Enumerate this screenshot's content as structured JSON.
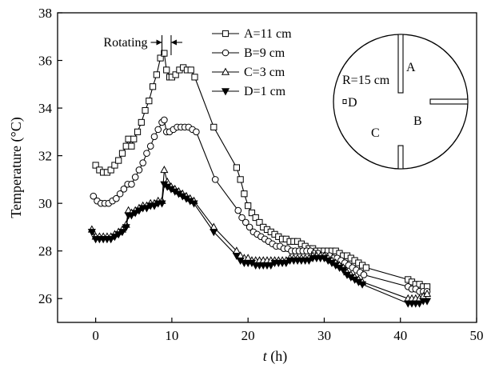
{
  "chart_data": {
    "type": "line",
    "xlabel_italic": "t",
    "xlabel_unit": " (h)",
    "ylabel": "Temperature (°C)",
    "xlim": [
      -5,
      50
    ],
    "ylim": [
      25,
      38
    ],
    "xticks": [
      0,
      10,
      20,
      30,
      40,
      50
    ],
    "yticks": [
      26,
      28,
      30,
      32,
      34,
      36,
      38
    ],
    "annotation": "Rotating",
    "rotating_interval": [
      8.7,
      9.9
    ],
    "inset": {
      "radius_label": "R=15 cm",
      "labels": [
        "A",
        "B",
        "C",
        "D"
      ]
    },
    "series": [
      {
        "name": "A=11 cm",
        "marker": "square",
        "points": [
          [
            0,
            31.6
          ],
          [
            0.5,
            31.4
          ],
          [
            1,
            31.3
          ],
          [
            1.5,
            31.3
          ],
          [
            2,
            31.4
          ],
          [
            2.5,
            31.6
          ],
          [
            3,
            31.8
          ],
          [
            3.5,
            32.1
          ],
          [
            4,
            32.4
          ],
          [
            4.3,
            32.7
          ],
          [
            4.7,
            32.4
          ],
          [
            5,
            32.7
          ],
          [
            5.5,
            33.0
          ],
          [
            6,
            33.4
          ],
          [
            6.5,
            33.9
          ],
          [
            7,
            34.3
          ],
          [
            7.5,
            34.9
          ],
          [
            8,
            35.4
          ],
          [
            8.5,
            36.1
          ],
          [
            9,
            36.3
          ],
          [
            9.3,
            35.6
          ],
          [
            9.7,
            35.3
          ],
          [
            10,
            35.3
          ],
          [
            10.5,
            35.4
          ],
          [
            11,
            35.6
          ],
          [
            11.5,
            35.7
          ],
          [
            12,
            35.6
          ],
          [
            12.5,
            35.6
          ],
          [
            13,
            35.3
          ],
          [
            15.5,
            33.2
          ],
          [
            18.5,
            31.5
          ],
          [
            19,
            31.0
          ],
          [
            19.5,
            30.4
          ],
          [
            20,
            29.9
          ],
          [
            20.5,
            29.6
          ],
          [
            21,
            29.4
          ],
          [
            21.5,
            29.2
          ],
          [
            22,
            29.0
          ],
          [
            22.5,
            28.9
          ],
          [
            23,
            28.8
          ],
          [
            23.5,
            28.7
          ],
          [
            24,
            28.6
          ],
          [
            24.5,
            28.5
          ],
          [
            25,
            28.5
          ],
          [
            25.5,
            28.4
          ],
          [
            26,
            28.4
          ],
          [
            26.5,
            28.4
          ],
          [
            27,
            28.3
          ],
          [
            27.5,
            28.2
          ],
          [
            28,
            28.1
          ],
          [
            28.5,
            28.1
          ],
          [
            29,
            28.0
          ],
          [
            29.5,
            28.0
          ],
          [
            30,
            28.0
          ],
          [
            30.5,
            28.0
          ],
          [
            31,
            28.0
          ],
          [
            31.5,
            28.0
          ],
          [
            32,
            27.9
          ],
          [
            32.5,
            27.8
          ],
          [
            33,
            27.8
          ],
          [
            33.5,
            27.7
          ],
          [
            34,
            27.6
          ],
          [
            34.5,
            27.5
          ],
          [
            35,
            27.4
          ],
          [
            35.5,
            27.3
          ],
          [
            41,
            26.8
          ],
          [
            41.5,
            26.7
          ],
          [
            42,
            26.6
          ],
          [
            42.5,
            26.6
          ],
          [
            43,
            26.5
          ],
          [
            43.5,
            26.5
          ]
        ]
      },
      {
        "name": "B=9 cm",
        "marker": "circle",
        "points": [
          [
            -0.3,
            30.3
          ],
          [
            0.2,
            30.1
          ],
          [
            0.7,
            30.0
          ],
          [
            1.2,
            30.0
          ],
          [
            1.7,
            30.0
          ],
          [
            2.2,
            30.1
          ],
          [
            2.7,
            30.2
          ],
          [
            3.2,
            30.4
          ],
          [
            3.7,
            30.6
          ],
          [
            4.2,
            30.8
          ],
          [
            4.7,
            30.8
          ],
          [
            5.2,
            31.1
          ],
          [
            5.7,
            31.4
          ],
          [
            6.2,
            31.7
          ],
          [
            6.7,
            32.1
          ],
          [
            7.2,
            32.4
          ],
          [
            7.7,
            32.8
          ],
          [
            8.2,
            33.1
          ],
          [
            8.7,
            33.4
          ],
          [
            9,
            33.5
          ],
          [
            9.3,
            33.0
          ],
          [
            9.7,
            33.0
          ],
          [
            10.2,
            33.1
          ],
          [
            10.7,
            33.2
          ],
          [
            11.2,
            33.2
          ],
          [
            11.7,
            33.2
          ],
          [
            12.2,
            33.2
          ],
          [
            12.7,
            33.1
          ],
          [
            13.2,
            33.0
          ],
          [
            15.7,
            31.0
          ],
          [
            18.7,
            29.7
          ],
          [
            19.2,
            29.4
          ],
          [
            19.7,
            29.2
          ],
          [
            20.2,
            29.0
          ],
          [
            20.7,
            28.8
          ],
          [
            21.2,
            28.7
          ],
          [
            21.7,
            28.6
          ],
          [
            22.2,
            28.5
          ],
          [
            22.7,
            28.4
          ],
          [
            23.2,
            28.3
          ],
          [
            23.7,
            28.2
          ],
          [
            24.2,
            28.2
          ],
          [
            24.7,
            28.1
          ],
          [
            25.2,
            28.1
          ],
          [
            25.7,
            28.0
          ],
          [
            26.2,
            28.0
          ],
          [
            26.7,
            28.0
          ],
          [
            27.2,
            28.0
          ],
          [
            27.7,
            28.0
          ],
          [
            28.2,
            28.0
          ],
          [
            28.7,
            27.9
          ],
          [
            29.2,
            27.9
          ],
          [
            29.7,
            27.8
          ],
          [
            30.2,
            27.8
          ],
          [
            30.7,
            27.8
          ],
          [
            31.2,
            27.7
          ],
          [
            31.7,
            27.7
          ],
          [
            32.2,
            27.6
          ],
          [
            32.7,
            27.5
          ],
          [
            33.2,
            27.4
          ],
          [
            33.7,
            27.3
          ],
          [
            34.2,
            27.2
          ],
          [
            34.7,
            27.1
          ],
          [
            35.2,
            27.0
          ],
          [
            41,
            26.5
          ],
          [
            41.5,
            26.4
          ],
          [
            42,
            26.4
          ],
          [
            42.5,
            26.3
          ],
          [
            43,
            26.3
          ],
          [
            43.5,
            26.3
          ]
        ]
      },
      {
        "name": "C=3 cm",
        "marker": "triangle-up",
        "points": [
          [
            -0.5,
            28.9
          ],
          [
            0,
            28.6
          ],
          [
            0.5,
            28.6
          ],
          [
            1,
            28.6
          ],
          [
            1.5,
            28.6
          ],
          [
            2,
            28.6
          ],
          [
            2.5,
            28.7
          ],
          [
            3,
            28.8
          ],
          [
            3.5,
            28.9
          ],
          [
            4,
            29.1
          ],
          [
            4.3,
            29.7
          ],
          [
            4.7,
            29.6
          ],
          [
            5.2,
            29.7
          ],
          [
            5.7,
            29.8
          ],
          [
            6.2,
            29.9
          ],
          [
            6.7,
            29.9
          ],
          [
            7.2,
            30.0
          ],
          [
            7.7,
            30.0
          ],
          [
            8.2,
            30.1
          ],
          [
            8.7,
            30.1
          ],
          [
            9,
            31.4
          ],
          [
            9.4,
            30.9
          ],
          [
            9.9,
            30.7
          ],
          [
            10.4,
            30.6
          ],
          [
            10.9,
            30.5
          ],
          [
            11.4,
            30.4
          ],
          [
            11.9,
            30.3
          ],
          [
            12.4,
            30.2
          ],
          [
            12.9,
            30.1
          ],
          [
            15.5,
            29.0
          ],
          [
            18.5,
            28.0
          ],
          [
            19,
            27.8
          ],
          [
            19.5,
            27.7
          ],
          [
            20,
            27.7
          ],
          [
            20.5,
            27.6
          ],
          [
            21,
            27.6
          ],
          [
            21.5,
            27.6
          ],
          [
            22,
            27.6
          ],
          [
            22.5,
            27.6
          ],
          [
            23,
            27.6
          ],
          [
            23.5,
            27.6
          ],
          [
            24,
            27.6
          ],
          [
            24.5,
            27.6
          ],
          [
            25,
            27.6
          ],
          [
            25.5,
            27.7
          ],
          [
            26,
            27.7
          ],
          [
            26.5,
            27.7
          ],
          [
            27,
            27.7
          ],
          [
            27.5,
            27.7
          ],
          [
            28,
            27.7
          ],
          [
            28.5,
            27.8
          ],
          [
            29,
            27.8
          ],
          [
            29.5,
            27.8
          ],
          [
            30,
            27.8
          ],
          [
            30.5,
            27.7
          ],
          [
            31,
            27.6
          ],
          [
            31.5,
            27.5
          ],
          [
            32,
            27.4
          ],
          [
            32.5,
            27.3
          ],
          [
            33,
            27.1
          ],
          [
            33.5,
            27.0
          ],
          [
            34,
            26.9
          ],
          [
            34.5,
            26.8
          ],
          [
            35,
            26.7
          ],
          [
            41,
            26.0
          ],
          [
            41.5,
            26.0
          ],
          [
            42,
            26.0
          ],
          [
            42.5,
            26.0
          ],
          [
            43,
            26.1
          ],
          [
            43.5,
            26.2
          ]
        ]
      },
      {
        "name": "D=1 cm",
        "marker": "triangle-down",
        "points": [
          [
            -0.5,
            28.8
          ],
          [
            0,
            28.5
          ],
          [
            0.5,
            28.5
          ],
          [
            1,
            28.5
          ],
          [
            1.5,
            28.5
          ],
          [
            2,
            28.5
          ],
          [
            2.5,
            28.6
          ],
          [
            3,
            28.7
          ],
          [
            3.5,
            28.8
          ],
          [
            4,
            29.0
          ],
          [
            4.3,
            29.5
          ],
          [
            4.7,
            29.5
          ],
          [
            5.2,
            29.6
          ],
          [
            5.7,
            29.7
          ],
          [
            6.2,
            29.8
          ],
          [
            6.7,
            29.8
          ],
          [
            7.2,
            29.9
          ],
          [
            7.7,
            29.9
          ],
          [
            8.2,
            30.0
          ],
          [
            8.7,
            30.0
          ],
          [
            9,
            30.8
          ],
          [
            9.4,
            30.7
          ],
          [
            9.9,
            30.6
          ],
          [
            10.4,
            30.5
          ],
          [
            10.9,
            30.4
          ],
          [
            11.4,
            30.3
          ],
          [
            11.9,
            30.2
          ],
          [
            12.4,
            30.1
          ],
          [
            12.9,
            30.0
          ],
          [
            15.5,
            28.8
          ],
          [
            18.5,
            27.8
          ],
          [
            19,
            27.6
          ],
          [
            19.5,
            27.5
          ],
          [
            20,
            27.5
          ],
          [
            20.5,
            27.5
          ],
          [
            21,
            27.4
          ],
          [
            21.5,
            27.4
          ],
          [
            22,
            27.4
          ],
          [
            22.5,
            27.4
          ],
          [
            23,
            27.4
          ],
          [
            23.5,
            27.5
          ],
          [
            24,
            27.5
          ],
          [
            24.5,
            27.5
          ],
          [
            25,
            27.5
          ],
          [
            25.5,
            27.6
          ],
          [
            26,
            27.6
          ],
          [
            26.5,
            27.6
          ],
          [
            27,
            27.6
          ],
          [
            27.5,
            27.6
          ],
          [
            28,
            27.6
          ],
          [
            28.5,
            27.7
          ],
          [
            29,
            27.7
          ],
          [
            29.5,
            27.7
          ],
          [
            30,
            27.7
          ],
          [
            30.5,
            27.6
          ],
          [
            31,
            27.5
          ],
          [
            31.5,
            27.4
          ],
          [
            32,
            27.3
          ],
          [
            32.5,
            27.2
          ],
          [
            33,
            27.0
          ],
          [
            33.5,
            26.9
          ],
          [
            34,
            26.8
          ],
          [
            34.5,
            26.7
          ],
          [
            35,
            26.6
          ],
          [
            41,
            25.8
          ],
          [
            41.5,
            25.8
          ],
          [
            42,
            25.8
          ],
          [
            42.5,
            25.8
          ],
          [
            43,
            25.9
          ],
          [
            43.5,
            25.9
          ]
        ]
      }
    ]
  }
}
